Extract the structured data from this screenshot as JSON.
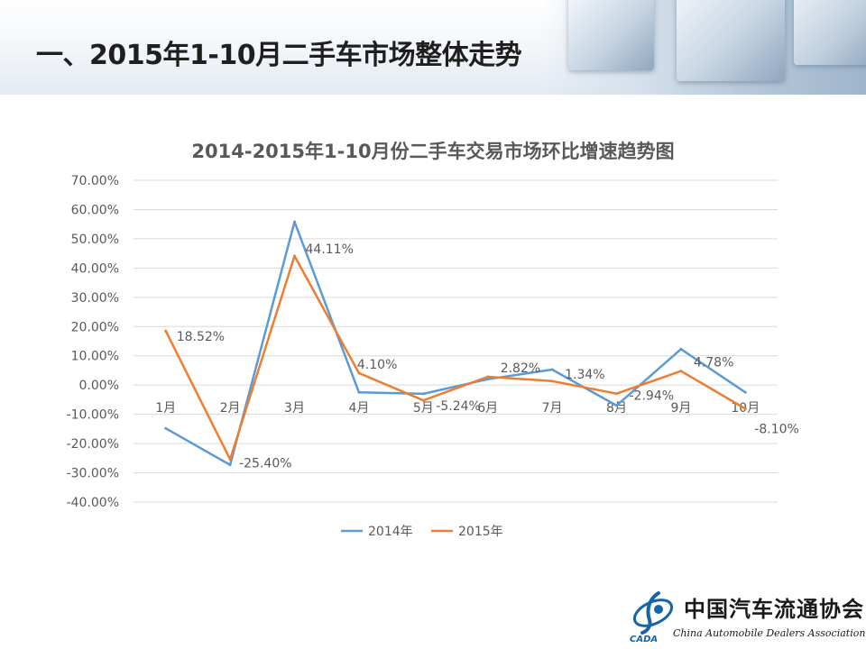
{
  "page": {
    "title": "一、2015年1-10月二手车市场整体走势"
  },
  "colors": {
    "series_2014": "#5b9bd5",
    "series_2015": "#ed7d31",
    "grid": "#d9d9d9",
    "axis_text": "#595959"
  },
  "chart_data": {
    "type": "line",
    "title": "2014-2015年1-10月份二手车交易市场环比增速趋势图",
    "categories": [
      "1月",
      "2月",
      "3月",
      "4月",
      "5月",
      "6月",
      "7月",
      "8月",
      "9月",
      "10月"
    ],
    "ylim": [
      -40,
      70
    ],
    "yticks": [
      "70.00%",
      "60.00%",
      "50.00%",
      "40.00%",
      "30.00%",
      "20.00%",
      "10.00%",
      "0.00%",
      "-10.00%",
      "-20.00%",
      "-30.00%",
      "-40.00%"
    ],
    "ytick_values": [
      70,
      60,
      50,
      40,
      30,
      20,
      10,
      0,
      -10,
      -20,
      -30,
      -40
    ],
    "grid": true,
    "legend_position": "bottom",
    "series": [
      {
        "name": "2014年",
        "values": [
          -14.8,
          -27.3,
          55.8,
          -2.5,
          -3.0,
          2.0,
          5.3,
          -7.0,
          12.3,
          -2.5
        ]
      },
      {
        "name": "2015年",
        "values": [
          18.52,
          -25.4,
          44.11,
          4.1,
          -5.24,
          2.82,
          1.34,
          -2.94,
          4.78,
          -8.1
        ],
        "data_labels": [
          "18.52%",
          "-25.40%",
          "44.11%",
          "4.10%",
          "-5.24%",
          "2.82%",
          "1.34%",
          "-2.94%",
          "4.78%",
          "-8.10%"
        ]
      }
    ]
  },
  "footer": {
    "org_cn": "中国汽车流通协会",
    "org_en": "China Automobile Dealers Association",
    "org_abbr": "CADA"
  }
}
